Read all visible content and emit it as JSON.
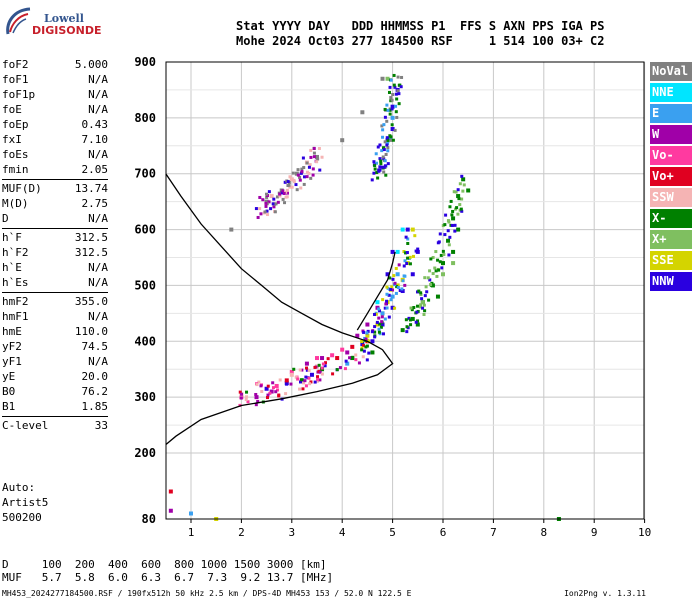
{
  "logo": {
    "line1": "Lowell",
    "line2": "DIGISONDE"
  },
  "header": {
    "line1": "Stat YYYY DAY   DDD HHMMSS P1  FFS S AXN PPS IGA PS",
    "line2": "Mohe 2024 Oct03 277 184500 RSF     1 514 100 03+ C2"
  },
  "params": [
    {
      "name": "foF2",
      "value": "5.000"
    },
    {
      "name": "foF1",
      "value": "N/A"
    },
    {
      "name": "foF1p",
      "value": "N/A"
    },
    {
      "name": "foE",
      "value": "N/A"
    },
    {
      "name": "foEp",
      "value": "0.43"
    },
    {
      "name": "fxI",
      "value": "7.10"
    },
    {
      "name": "foEs",
      "value": "N/A"
    },
    {
      "name": "fmin",
      "value": "2.05"
    },
    {
      "sep": true
    },
    {
      "name": "MUF(D)",
      "value": "13.74"
    },
    {
      "name": "M(D)",
      "value": "2.75"
    },
    {
      "name": "D",
      "value": "N/A"
    },
    {
      "sep": true
    },
    {
      "name": "h`F",
      "value": "312.5"
    },
    {
      "name": "h`F2",
      "value": "312.5"
    },
    {
      "name": "h`E",
      "value": "N/A"
    },
    {
      "name": "h`Es",
      "value": "N/A"
    },
    {
      "sep": true
    },
    {
      "name": "hmF2",
      "value": "355.0"
    },
    {
      "name": "hmF1",
      "value": "N/A"
    },
    {
      "name": "hmE",
      "value": "110.0"
    },
    {
      "name": "yF2",
      "value": "74.5"
    },
    {
      "name": "yF1",
      "value": "N/A"
    },
    {
      "name": "yE",
      "value": "20.0"
    },
    {
      "name": "B0",
      "value": "76.2"
    },
    {
      "name": "B1",
      "value": "1.85"
    },
    {
      "sep": true
    },
    {
      "name": "C-level",
      "value": "33"
    }
  ],
  "auto": {
    "line1": "Auto:",
    "line2": "Artist5",
    "line3": "500200"
  },
  "dmuf": {
    "d_line": "D     100  200  400  600  800 1000 1500 3000 [km]",
    "muf_line": "MUF   5.7  5.8  6.0  6.3  6.7  7.3  9.2 13.7 [MHz]"
  },
  "footer": {
    "left": "MH453_2024277184500.RSF / 190fx512h 50 kHz 2.5 km / DPS-4D MH453 153 / 52.0 N 122.5 E",
    "right": "Ion2Png v. 1.3.11"
  },
  "legend": [
    {
      "label": "NoVal",
      "bg": "#808080",
      "fg": "#ffffff"
    },
    {
      "label": "NNE",
      "bg": "#00e5ff",
      "fg": "#ffffff"
    },
    {
      "label": "E",
      "bg": "#3aa0f0",
      "fg": "#ffffff"
    },
    {
      "label": "W",
      "bg": "#a000a8",
      "fg": "#ffffff"
    },
    {
      "label": "Vo-",
      "bg": "#ff3aa0",
      "fg": "#ffffff"
    },
    {
      "label": "Vo+",
      "bg": "#e00020",
      "fg": "#ffffff"
    },
    {
      "label": "SSW",
      "bg": "#f5b4b4",
      "fg": "#ffffff"
    },
    {
      "label": "X-",
      "bg": "#008000",
      "fg": "#ffffff"
    },
    {
      "label": "X+",
      "bg": "#7fbf60",
      "fg": "#ffffff"
    },
    {
      "label": "SSE",
      "bg": "#d4d400",
      "fg": "#ffffff"
    },
    {
      "label": "NNW",
      "bg": "#2a00e0",
      "fg": "#ffffff"
    }
  ],
  "chart_data": {
    "type": "scatter",
    "title": "",
    "xlabel": "",
    "ylabel": "",
    "xlim": [
      0.5,
      10
    ],
    "ylim": [
      80,
      900
    ],
    "x_ticks": [
      1,
      2,
      3,
      4,
      5,
      6,
      7,
      8,
      9,
      10
    ],
    "y_ticks": [
      80,
      200,
      300,
      400,
      500,
      600,
      700,
      800,
      900
    ],
    "grid": true,
    "legend_position": "right",
    "series": [
      {
        "name": "X-",
        "color": "#008000",
        "points": [
          [
            5.2,
            420
          ],
          [
            5.4,
            440
          ],
          [
            5.6,
            470
          ],
          [
            5.8,
            500
          ],
          [
            6.0,
            540
          ],
          [
            6.1,
            580
          ],
          [
            6.2,
            620
          ],
          [
            6.3,
            660
          ],
          [
            6.4,
            690
          ],
          [
            6.5,
            670
          ],
          [
            6.3,
            600
          ],
          [
            6.2,
            560
          ],
          [
            5.9,
            480
          ],
          [
            5.5,
            430
          ],
          [
            4.6,
            380
          ],
          [
            4.2,
            370
          ],
          [
            3.6,
            350
          ],
          [
            3.2,
            330
          ],
          [
            8.3,
            80
          ]
        ]
      },
      {
        "name": "NNW",
        "color": "#2a00e0",
        "points": [
          [
            4.6,
            400
          ],
          [
            4.8,
            430
          ],
          [
            5.0,
            460
          ],
          [
            5.2,
            490
          ],
          [
            5.4,
            520
          ],
          [
            5.5,
            560
          ],
          [
            5.3,
            600
          ],
          [
            5.0,
            560
          ],
          [
            4.9,
            520
          ],
          [
            4.4,
            395
          ],
          [
            5.1,
            850
          ],
          [
            5.0,
            820
          ],
          [
            5.0,
            780
          ],
          [
            4.9,
            760
          ],
          [
            2.5,
            315
          ],
          [
            2.9,
            325
          ],
          [
            3.4,
            340
          ]
        ]
      },
      {
        "name": "SSE",
        "color": "#d4d400",
        "points": [
          [
            4.5,
            410
          ],
          [
            4.7,
            430
          ],
          [
            4.9,
            470
          ],
          [
            5.1,
            500
          ],
          [
            5.3,
            540
          ],
          [
            5.2,
            510
          ],
          [
            4.8,
            450
          ],
          [
            5.4,
            600
          ],
          [
            1.5,
            80
          ]
        ]
      },
      {
        "name": "W",
        "color": "#a000a8",
        "points": [
          [
            4.1,
            380
          ],
          [
            4.3,
            410
          ],
          [
            4.5,
            430
          ],
          [
            4.7,
            460
          ],
          [
            3.3,
            360
          ],
          [
            3.6,
            370
          ],
          [
            2.3,
            300
          ],
          [
            2.6,
            310
          ],
          [
            0.6,
            95
          ]
        ]
      },
      {
        "name": "Vo-",
        "color": "#ff3aa0",
        "points": [
          [
            3.5,
            370
          ],
          [
            3.8,
            375
          ],
          [
            4.0,
            385
          ],
          [
            3.0,
            345
          ],
          [
            2.7,
            320
          ],
          [
            2.0,
            300
          ]
        ]
      },
      {
        "name": "Vo+",
        "color": "#e00020",
        "points": [
          [
            4.5,
            400
          ],
          [
            4.2,
            390
          ],
          [
            3.9,
            370
          ],
          [
            2.9,
            330
          ],
          [
            0.6,
            130
          ]
        ]
      },
      {
        "name": "E",
        "color": "#3aa0f0",
        "points": [
          [
            4.8,
            450
          ],
          [
            5.0,
            480
          ],
          [
            5.1,
            520
          ],
          [
            4.1,
            360
          ],
          [
            5.0,
            800
          ],
          [
            1.0,
            90
          ]
        ]
      },
      {
        "name": "NNE",
        "color": "#00e5ff",
        "points": [
          [
            5.1,
            560
          ],
          [
            5.2,
            600
          ],
          [
            4.7,
            470
          ]
        ]
      },
      {
        "name": "X+",
        "color": "#7fbf60",
        "points": [
          [
            5.6,
            470
          ],
          [
            6.0,
            520
          ],
          [
            6.2,
            540
          ],
          [
            4.9,
            870
          ]
        ]
      },
      {
        "name": "SSW",
        "color": "#f5b4b4",
        "points": [
          [
            3.0,
            340
          ],
          [
            3.5,
            355
          ],
          [
            2.0,
            305
          ],
          [
            3.0,
            690
          ],
          [
            3.3,
            720
          ],
          [
            2.6,
            660
          ]
        ]
      },
      {
        "name": "NoVal",
        "color": "#808080",
        "points": [
          [
            2.5,
            650
          ],
          [
            2.8,
            670
          ],
          [
            3.1,
            700
          ],
          [
            3.5,
            730
          ],
          [
            4.0,
            760
          ],
          [
            4.4,
            810
          ],
          [
            4.8,
            870
          ],
          [
            1.8,
            600
          ]
        ]
      }
    ],
    "profile_curve": [
      [
        0.5,
        700
      ],
      [
        0.8,
        660
      ],
      [
        1.2,
        610
      ],
      [
        1.6,
        570
      ],
      [
        2.0,
        530
      ],
      [
        2.4,
        500
      ],
      [
        2.8,
        470
      ],
      [
        3.2,
        450
      ],
      [
        3.6,
        430
      ],
      [
        4.0,
        415
      ],
      [
        4.5,
        400
      ],
      [
        4.8,
        385
      ],
      [
        5.0,
        360
      ],
      [
        4.7,
        340
      ],
      [
        4.2,
        325
      ],
      [
        3.5,
        310
      ],
      [
        2.8,
        297
      ],
      [
        2.0,
        285
      ],
      [
        1.2,
        260
      ],
      [
        0.7,
        230
      ],
      [
        0.5,
        215
      ]
    ],
    "trace_curve": [
      [
        4.3,
        420
      ],
      [
        4.5,
        450
      ],
      [
        4.7,
        480
      ],
      [
        4.9,
        510
      ],
      [
        5.0,
        540
      ],
      [
        5.05,
        560
      ]
    ]
  }
}
